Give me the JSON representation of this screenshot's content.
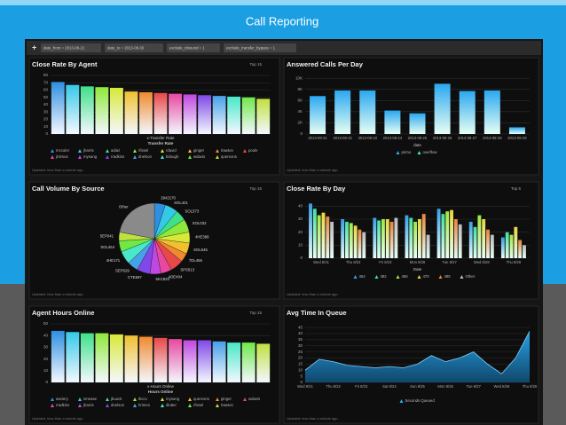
{
  "title": "Call Reporting",
  "filters": [
    "date_from = 2013-08-21",
    "date_to = 2013-08-30",
    "exclude_inbound = 1",
    "exclude_transfer_bypass = 1"
  ],
  "panels": [
    {
      "control": "Top 15",
      "footer": "Updated: less than a minute ago"
    },
    {
      "footer": "Updated: less than a minute ago"
    },
    {
      "control": "Top 15",
      "footer": "Updated: less than a minute ago"
    },
    {
      "control": "Top 5",
      "footer": "Updated: less than a minute ago"
    },
    {
      "control": "Top 15",
      "footer": "Updated: less than a minute ago"
    },
    {
      "footer": "Updated: less than a minute ago"
    }
  ],
  "chart_data": [
    {
      "type": "bar",
      "title": "Close Rate By Agent",
      "xlabel": "x-Transfer Rate",
      "legend_title": "Transfer Rate",
      "categories": [
        "mcculer",
        "jharris",
        "adiaz",
        "rfissel",
        "rdavid",
        "ginget",
        "lrawton",
        "poole",
        "jmimus",
        "mysung",
        "rradkins",
        "dnelson",
        "bdough",
        "wdavis",
        "quereons"
      ],
      "values": [
        71,
        67,
        65,
        64,
        63,
        58,
        57,
        56,
        55,
        54,
        53,
        52,
        51,
        50,
        48
      ],
      "colors": [
        "#2f8fe0",
        "#35c9e8",
        "#3fe08a",
        "#8fe83a",
        "#d8e838",
        "#f0c030",
        "#f08a30",
        "#e84848",
        "#e848a0",
        "#c048e0",
        "#8048e8",
        "#48a0e8",
        "#48e8c8",
        "#70e848",
        "#c0e040"
      ],
      "ylim": [
        0,
        80
      ],
      "yticks": [
        0,
        10,
        20,
        30,
        40,
        50,
        60,
        70,
        80
      ],
      "grid": true
    },
    {
      "type": "bar",
      "title": "Answered Calls Per Day",
      "xlabel": "date",
      "stacked": true,
      "categories": [
        "2013-08-21",
        "2013-08-22",
        "2013-08-23",
        "2013-08-24",
        "2013-08-25",
        "2013-08-26",
        "2013-08-27",
        "2013-08-28",
        "2013-08-29"
      ],
      "series": [
        {
          "name": "primo",
          "color": "#2aa8f0",
          "values": [
            6800,
            7800,
            7800,
            4200,
            3700,
            9000,
            7700,
            7800,
            1200
          ]
        },
        {
          "name": "overflow",
          "color": "#48e8c8",
          "values": [
            0,
            0,
            0,
            0,
            0,
            0,
            0,
            0,
            0
          ]
        }
      ],
      "ylim": [
        0,
        10500
      ],
      "yticks": [
        0,
        {
          "value": 2000,
          "label": "2K"
        },
        {
          "value": 4000,
          "label": "4K"
        },
        {
          "value": 6000,
          "label": "6K"
        },
        {
          "value": 8000,
          "label": "8K"
        },
        {
          "value": 10000,
          "label": "10K"
        }
      ],
      "grid": true
    },
    {
      "type": "pie",
      "title": "Call Volume By Source",
      "categories": [
        "2942170",
        "SOL421",
        "SOL573",
        "SOL032",
        "4HE388",
        "SOL545",
        "7DL456",
        "SPS513",
        "4OE404",
        "5KC820",
        "CTE597",
        "SEP029",
        "4HE171",
        "SOL454",
        "5EP041",
        "Other"
      ],
      "values": [
        5,
        6,
        5,
        6,
        5,
        5,
        4,
        6,
        5,
        5,
        6,
        5,
        6,
        5,
        4,
        22
      ],
      "colors": [
        "#2f8fe0",
        "#35c9e8",
        "#3fe08a",
        "#8fe83a",
        "#d8e838",
        "#f0c030",
        "#f08a30",
        "#e84848",
        "#e848a0",
        "#c048e0",
        "#8048e8",
        "#48a0e8",
        "#48e8c8",
        "#70e848",
        "#c0e040",
        "#8a8a8a"
      ]
    },
    {
      "type": "bar",
      "title": "Close Rate By Day",
      "xlabel": "Date",
      "categories": [
        "Wed 8/21",
        "Thu 8/22",
        "Fri 8/23",
        "Mon 8/26",
        "Tue 8/27",
        "Wed 8/28",
        "Thu 8/29"
      ],
      "series": [
        {
          "name": "454",
          "color": "#3a9ee8",
          "values": [
            42,
            30,
            31,
            33,
            38,
            28,
            16
          ]
        },
        {
          "name": "482",
          "color": "#3ee0a0",
          "values": [
            38,
            28,
            29,
            31,
            34,
            24,
            20
          ]
        },
        {
          "name": "456",
          "color": "#a0e83e",
          "values": [
            33,
            27,
            30,
            28,
            36,
            33,
            18
          ]
        },
        {
          "name": "470",
          "color": "#e8d83e",
          "values": [
            35,
            25,
            30,
            30,
            37,
            30,
            24
          ]
        },
        {
          "name": "485",
          "color": "#e8843e",
          "values": [
            32,
            22,
            28,
            34,
            30,
            22,
            14
          ]
        },
        {
          "name": "Other",
          "color": "#bbbbbb",
          "values": [
            28,
            20,
            31,
            18,
            26,
            18,
            10
          ]
        }
      ],
      "ylim": [
        0,
        45
      ],
      "yticks": [
        0,
        10,
        20,
        30,
        40
      ],
      "grid": true
    },
    {
      "type": "bar",
      "title": "Agent Hours Online",
      "xlabel": "x-Hours Online",
      "legend_title": "Hours Online",
      "categories": [
        "aseiery",
        "smease",
        "jbuuck",
        "tlicco",
        "mysung",
        "quereons",
        "ginger",
        "wdavis",
        "rradkins",
        "jharris",
        "dnelson",
        "hrimes",
        "dlutter",
        "rfissel",
        "lrawton"
      ],
      "values": [
        44,
        43,
        42,
        42,
        41,
        40,
        39,
        38,
        37,
        36,
        36,
        35,
        34,
        34,
        33
      ],
      "colors": [
        "#2f8fe0",
        "#35c9e8",
        "#3fe08a",
        "#8fe83a",
        "#d8e838",
        "#f0c030",
        "#f08a30",
        "#e84848",
        "#e848a0",
        "#c048e0",
        "#8048e8",
        "#48a0e8",
        "#48e8c8",
        "#70e848",
        "#c0e040"
      ],
      "ylim": [
        0,
        50
      ],
      "yticks": [
        0,
        10,
        20,
        30,
        40,
        50
      ],
      "grid": true
    },
    {
      "type": "area",
      "title": "Avg Time In Queue",
      "categories": [
        "Wed 8/21",
        null,
        "Thu 8/22",
        null,
        "Fri 8/23",
        null,
        "Sat 8/24",
        null,
        "Sun 8/25",
        null,
        "Mon 8/26",
        null,
        "Tue 8/27",
        null,
        "Wed 8/28",
        null,
        "Thu 8/29"
      ],
      "series": [
        {
          "name": "Seconds Queued",
          "color": "#2aa8f0",
          "values": [
            10,
            19,
            17,
            14,
            13,
            12,
            13,
            12,
            15,
            22,
            17,
            20,
            25,
            15,
            7,
            20,
            42
          ]
        }
      ],
      "ylim": [
        0,
        48
      ],
      "yticks": [
        0,
        5,
        10,
        15,
        20,
        25,
        30,
        35,
        40,
        45
      ],
      "grid": true
    }
  ]
}
